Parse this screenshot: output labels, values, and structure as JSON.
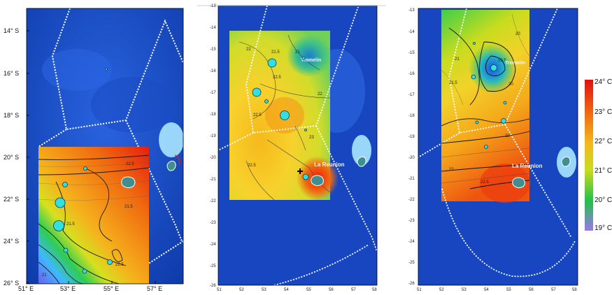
{
  "panel1": {
    "lat_ticks": [
      "14° S",
      "16° S",
      "18° S",
      "20° S",
      "22° S",
      "24° S",
      "26° S"
    ],
    "lon_ticks": [
      "51° E",
      "53° E",
      "55° E",
      "57° E"
    ],
    "contour_labels": [
      "22.5",
      "21.5",
      "21.5",
      "22.5",
      "21"
    ]
  },
  "panel2": {
    "lat_ticks": [
      "-13",
      "-14",
      "-15",
      "-16",
      "-17",
      "-18",
      "-19",
      "-20",
      "-21",
      "-22",
      "-23",
      "-24",
      "-25",
      "-26"
    ],
    "lon_ticks": [
      "51",
      "52",
      "53",
      "54",
      "55",
      "56",
      "57",
      "58"
    ],
    "places": {
      "tromelin": "Tromelin",
      "reunion": "La Reunion"
    },
    "contour_labels": [
      "22",
      "21.5",
      "21",
      "22.5",
      "22",
      "23",
      "22.5",
      "22.5"
    ]
  },
  "panel3": {
    "lat_ticks": [
      "-13",
      "-14",
      "-15",
      "-16",
      "-17",
      "-18",
      "-19",
      "-20",
      "-21",
      "-22",
      "-23",
      "-24",
      "-25",
      "-26"
    ],
    "lon_ticks": [
      "51",
      "52",
      "53",
      "54",
      "55",
      "56",
      "57",
      "58"
    ],
    "places": {
      "tromelin": "Tromelin",
      "reunion": "La Reunion"
    },
    "contour_labels": [
      "20",
      "21",
      "19.5",
      "21.5",
      "20",
      "22",
      "22.5",
      "23",
      "22"
    ]
  },
  "legend": {
    "labels": [
      "24° C",
      "23° C",
      "22° C",
      "21° C",
      "20° C",
      "19° C"
    ],
    "colors": [
      "#e01010",
      "#f06a10",
      "#f2b81c",
      "#c8dc1e",
      "#22c04a",
      "#9a78f0"
    ]
  }
}
